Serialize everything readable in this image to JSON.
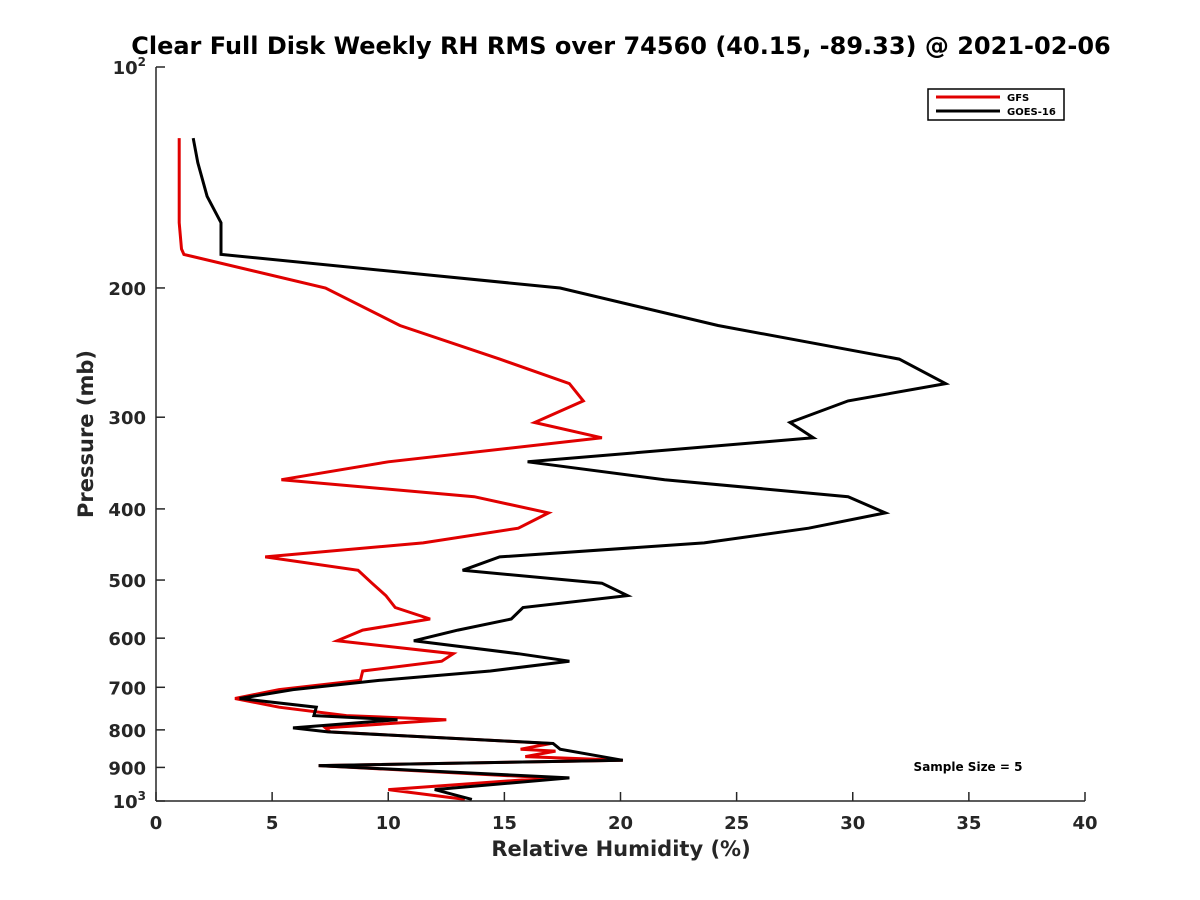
{
  "chart_data": {
    "type": "line",
    "title": "Clear Full Disk Weekly RH RMS over 74560 (40.15, -89.33) @ 2021-02-06",
    "xlabel": "Relative Humidity (%)",
    "ylabel": "Pressure (mb)",
    "xlim": [
      0,
      40
    ],
    "ylim": [
      100,
      1000
    ],
    "yscale": "log",
    "y_reversed": true,
    "grid": false,
    "legend_position": "top-right",
    "x_ticks": [
      {
        "value": 0,
        "label": "0"
      },
      {
        "value": 5,
        "label": "5"
      },
      {
        "value": 10,
        "label": "10"
      },
      {
        "value": 15,
        "label": "15"
      },
      {
        "value": 20,
        "label": "20"
      },
      {
        "value": 25,
        "label": "25"
      },
      {
        "value": 30,
        "label": "30"
      },
      {
        "value": 35,
        "label": "35"
      },
      {
        "value": 40,
        "label": "40"
      }
    ],
    "y_ticks": [
      {
        "value": 100,
        "label": "10",
        "exp": "2"
      },
      {
        "value": 200,
        "label": "200"
      },
      {
        "value": 300,
        "label": "300"
      },
      {
        "value": 400,
        "label": "400"
      },
      {
        "value": 500,
        "label": "500"
      },
      {
        "value": 600,
        "label": "600"
      },
      {
        "value": 700,
        "label": "700"
      },
      {
        "value": 800,
        "label": "800"
      },
      {
        "value": 900,
        "label": "900"
      },
      {
        "value": 1000,
        "label": "10",
        "exp": "3"
      }
    ],
    "series": [
      {
        "name": "GFS",
        "color": "#e00000",
        "points": [
          [
            1.0,
            125
          ],
          [
            1.0,
            135
          ],
          [
            1.0,
            150
          ],
          [
            1.0,
            163
          ],
          [
            1.1,
            177
          ],
          [
            1.2,
            180
          ],
          [
            7.3,
            200
          ],
          [
            10.5,
            225
          ],
          [
            14.8,
            250
          ],
          [
            17.8,
            270
          ],
          [
            18.4,
            285
          ],
          [
            16.3,
            305
          ],
          [
            19.2,
            320
          ],
          [
            10.0,
            345
          ],
          [
            5.4,
            365
          ],
          [
            13.7,
            385
          ],
          [
            16.9,
            405
          ],
          [
            15.6,
            425
          ],
          [
            11.5,
            445
          ],
          [
            4.7,
            465
          ],
          [
            8.7,
            485
          ],
          [
            9.3,
            505
          ],
          [
            9.9,
            525
          ],
          [
            10.3,
            545
          ],
          [
            11.8,
            565
          ],
          [
            8.9,
            585
          ],
          [
            7.8,
            605
          ],
          [
            12.8,
            630
          ],
          [
            12.3,
            645
          ],
          [
            8.9,
            665
          ],
          [
            8.8,
            685
          ],
          [
            5.3,
            705
          ],
          [
            3.4,
            725
          ],
          [
            5.3,
            745
          ],
          [
            8.2,
            765
          ],
          [
            12.5,
            775
          ],
          [
            7.3,
            795
          ],
          [
            7.5,
            805
          ],
          [
            17.0,
            835
          ],
          [
            15.7,
            850
          ],
          [
            17.2,
            855
          ],
          [
            15.9,
            870
          ],
          [
            20.1,
            880
          ],
          [
            7.0,
            895
          ],
          [
            17.0,
            930
          ],
          [
            10.0,
            965
          ],
          [
            13.3,
            995
          ]
        ]
      },
      {
        "name": "GOES-16",
        "color": "#000000",
        "points": [
          [
            1.6,
            125
          ],
          [
            1.8,
            135
          ],
          [
            2.2,
            150
          ],
          [
            2.8,
            163
          ],
          [
            2.8,
            180
          ],
          [
            17.4,
            200
          ],
          [
            24.2,
            225
          ],
          [
            32.0,
            250
          ],
          [
            34.0,
            270
          ],
          [
            29.8,
            285
          ],
          [
            27.3,
            305
          ],
          [
            28.3,
            320
          ],
          [
            16.0,
            345
          ],
          [
            21.9,
            365
          ],
          [
            29.8,
            385
          ],
          [
            31.4,
            405
          ],
          [
            28.1,
            425
          ],
          [
            23.6,
            445
          ],
          [
            14.8,
            465
          ],
          [
            13.2,
            485
          ],
          [
            19.2,
            505
          ],
          [
            20.3,
            525
          ],
          [
            15.8,
            545
          ],
          [
            15.3,
            565
          ],
          [
            13.0,
            585
          ],
          [
            11.1,
            605
          ],
          [
            15.6,
            630
          ],
          [
            17.8,
            645
          ],
          [
            14.4,
            665
          ],
          [
            9.6,
            685
          ],
          [
            5.9,
            705
          ],
          [
            3.6,
            725
          ],
          [
            6.9,
            745
          ],
          [
            6.8,
            765
          ],
          [
            10.4,
            775
          ],
          [
            5.9,
            795
          ],
          [
            7.4,
            805
          ],
          [
            17.1,
            835
          ],
          [
            17.4,
            850
          ],
          [
            20.1,
            880
          ],
          [
            7.0,
            895
          ],
          [
            17.8,
            930
          ],
          [
            12.0,
            965
          ],
          [
            13.6,
            995
          ]
        ]
      }
    ],
    "legend": [
      {
        "label": "GFS",
        "color": "#e00000"
      },
      {
        "label": "GOES-16",
        "color": "#000000"
      }
    ],
    "annotations": [
      {
        "text": "Sample Size = 5"
      }
    ]
  }
}
